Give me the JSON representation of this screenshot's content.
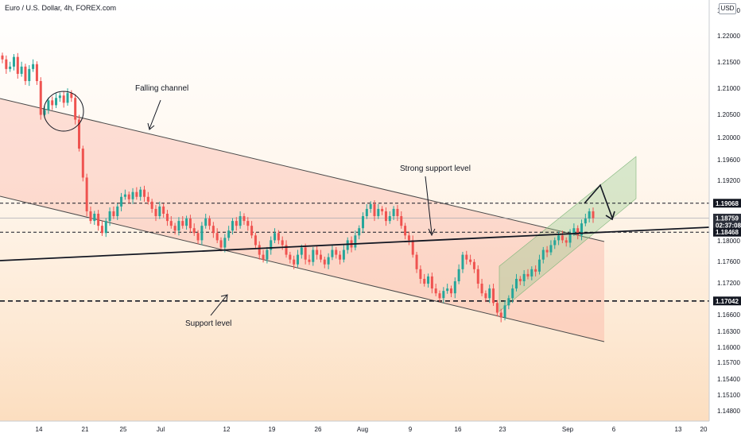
{
  "header": {
    "title": "Euro / U.S. Dollar, 4h, FOREX.com",
    "currency": "USD"
  },
  "chart_data": {
    "type": "candlestick",
    "symbol": "EURUSD",
    "timeframe": "4h",
    "ylim": [
      1.1465,
      1.2305
    ],
    "y_ticks": [
      "1.22500",
      "1.22000",
      "1.21500",
      "1.21000",
      "1.20500",
      "1.20000",
      "1.19600",
      "1.19200",
      "1.18800",
      "1.18400",
      "1.18000",
      "1.17600",
      "1.17200",
      "1.16900",
      "1.16600",
      "1.16300",
      "1.16000",
      "1.15700",
      "1.15400",
      "1.15100",
      "1.14800"
    ],
    "x_ticks": [
      "14",
      "21",
      "25",
      "Jul",
      "12",
      "19",
      "26",
      "Aug",
      "9",
      "16",
      "23",
      "Sep",
      "6",
      "13",
      "20"
    ],
    "price_tags": [
      {
        "label": "1.19068",
        "value": 1.19068,
        "color": "#131722"
      },
      {
        "label": "1.18759",
        "value": 1.18759,
        "color": "#2a2e39",
        "sub": "02:37:08"
      },
      {
        "label": "1.18468",
        "value": 1.18468,
        "color": "#131722"
      },
      {
        "label": "1.17042",
        "value": 1.17042,
        "color": "#131722"
      }
    ],
    "levels": [
      {
        "name": "resistance",
        "value": 1.19068,
        "style": "dashed"
      },
      {
        "name": "strong-support",
        "value": 1.18468,
        "style": "dashed"
      },
      {
        "name": "support",
        "value": 1.17042,
        "style": "dashed-thick"
      }
    ],
    "annotations": [
      {
        "text": "Falling channel"
      },
      {
        "text": "Strong support level"
      },
      {
        "text": "Support level"
      }
    ],
    "close": [
      1.2205,
      1.2185,
      1.219,
      1.221,
      1.2175,
      1.219,
      1.216,
      1.2185,
      1.2195,
      1.216,
      1.209,
      1.21,
      1.212,
      1.211,
      1.2125,
      1.213,
      1.2115,
      1.2135,
      1.2125,
      1.208,
      1.202,
      1.196,
      1.189,
      1.187,
      1.1885,
      1.186,
      1.1845,
      1.187,
      1.189,
      1.188,
      1.19,
      1.192,
      1.1925,
      1.1915,
      1.193,
      1.192,
      1.1935,
      1.192,
      1.191,
      1.1895,
      1.188,
      1.19,
      1.1885,
      1.187,
      1.186,
      1.185,
      1.187,
      1.186,
      1.1875,
      1.1855,
      1.1845,
      1.183,
      1.186,
      1.1875,
      1.186,
      1.1845,
      1.183,
      1.1815,
      1.1835,
      1.185,
      1.187,
      1.186,
      1.188,
      1.187,
      1.186,
      1.184,
      1.182,
      1.18,
      1.179,
      1.181,
      1.183,
      1.1845,
      1.183,
      1.182,
      1.18,
      1.179,
      1.178,
      1.18,
      1.1815,
      1.179,
      1.1785,
      1.181,
      1.18,
      1.179,
      1.178,
      1.1795,
      1.181,
      1.18,
      1.179,
      1.181,
      1.183,
      1.1815,
      1.184,
      1.1855,
      1.188,
      1.1895,
      1.1905,
      1.188,
      1.1895,
      1.189,
      1.187,
      1.188,
      1.1895,
      1.188,
      1.186,
      1.184,
      1.183,
      1.18,
      1.177,
      1.175,
      1.174,
      1.1755,
      1.173,
      1.172,
      1.171,
      1.1725,
      1.173,
      1.172,
      1.1745,
      1.177,
      1.18,
      1.179,
      1.1785,
      1.177,
      1.174,
      1.172,
      1.171,
      1.173,
      1.17,
      1.168,
      1.167,
      1.1695,
      1.171,
      1.173,
      1.175,
      1.1745,
      1.176,
      1.1755,
      1.177,
      1.1765,
      1.179,
      1.181,
      1.1805,
      1.182,
      1.183,
      1.184,
      1.183,
      1.1825,
      1.1845,
      1.1855,
      1.184,
      1.1865,
      1.1875,
      1.189,
      1.1876
    ]
  }
}
